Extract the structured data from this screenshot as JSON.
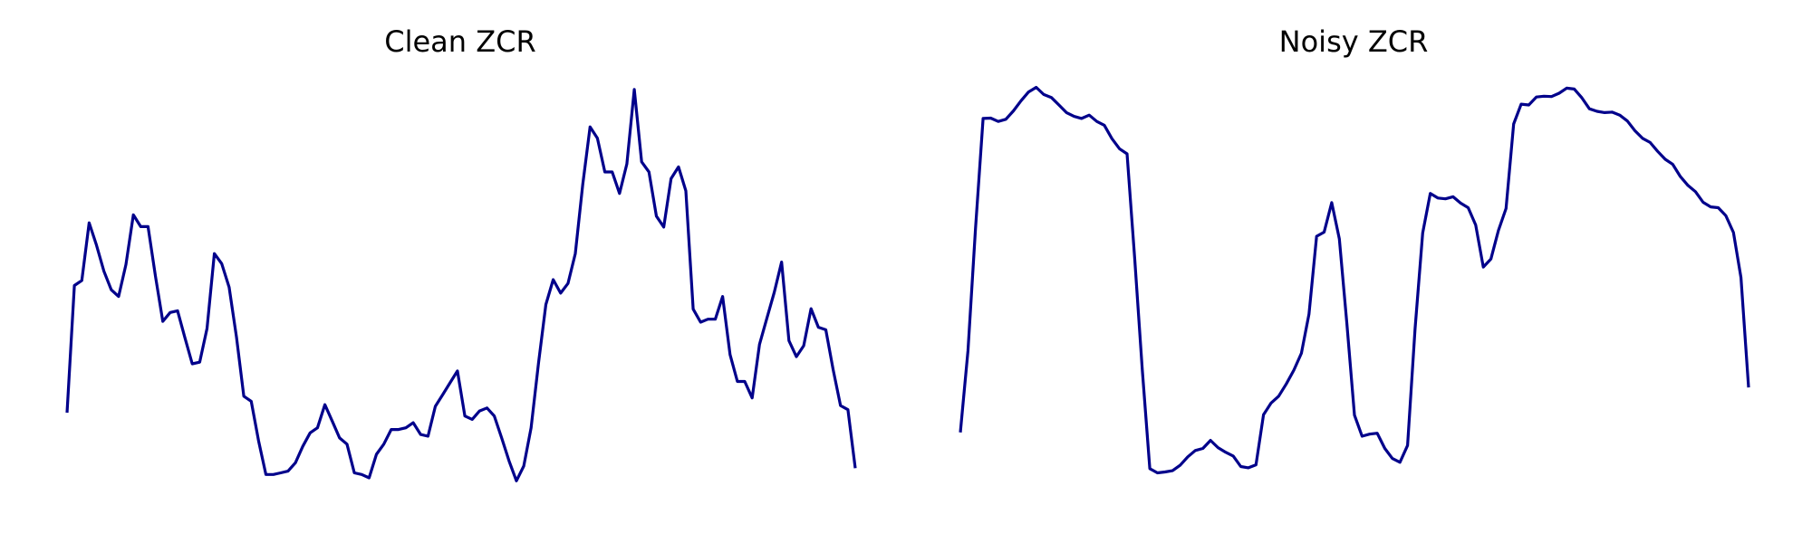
{
  "chart_data": [
    {
      "type": "line",
      "title": "Clean ZCR",
      "xlabel": "",
      "ylabel": "",
      "axes_visible": false,
      "grid": false,
      "color": "#00008b",
      "ylim": [
        0.0,
        1.0
      ],
      "values": [
        0.213,
        0.515,
        0.527,
        0.664,
        0.611,
        0.549,
        0.505,
        0.489,
        0.565,
        0.683,
        0.655,
        0.655,
        0.537,
        0.43,
        0.451,
        0.455,
        0.391,
        0.329,
        0.333,
        0.413,
        0.591,
        0.567,
        0.511,
        0.393,
        0.252,
        0.24,
        0.146,
        0.066,
        0.066,
        0.07,
        0.074,
        0.094,
        0.133,
        0.165,
        0.177,
        0.232,
        0.193,
        0.153,
        0.138,
        0.07,
        0.066,
        0.058,
        0.114,
        0.138,
        0.173,
        0.173,
        0.177,
        0.189,
        0.161,
        0.157,
        0.228,
        0.256,
        0.284,
        0.312,
        0.205,
        0.197,
        0.217,
        0.224,
        0.205,
        0.153,
        0.098,
        0.051,
        0.086,
        0.177,
        0.331,
        0.47,
        0.529,
        0.497,
        0.52,
        0.591,
        0.755,
        0.892,
        0.865,
        0.785,
        0.785,
        0.734,
        0.804,
        0.981,
        0.809,
        0.785,
        0.68,
        0.654,
        0.769,
        0.797,
        0.74,
        0.459,
        0.428,
        0.435,
        0.435,
        0.489,
        0.351,
        0.287,
        0.287,
        0.248,
        0.375,
        0.437,
        0.499,
        0.571,
        0.384,
        0.346,
        0.372,
        0.46,
        0.416,
        0.41,
        0.315,
        0.23,
        0.22,
        0.081
      ]
    },
    {
      "type": "line",
      "title": "Noisy ZCR",
      "xlabel": "",
      "ylabel": "",
      "axes_visible": false,
      "grid": false,
      "color": "#00008b",
      "ylim": [
        0.0,
        1.0
      ],
      "values": [
        0.166,
        0.36,
        0.65,
        0.912,
        0.913,
        0.905,
        0.91,
        0.93,
        0.954,
        0.975,
        0.986,
        0.969,
        0.962,
        0.944,
        0.926,
        0.917,
        0.912,
        0.92,
        0.905,
        0.896,
        0.864,
        0.84,
        0.828,
        0.58,
        0.315,
        0.08,
        0.07,
        0.072,
        0.075,
        0.088,
        0.108,
        0.123,
        0.128,
        0.147,
        0.13,
        0.119,
        0.11,
        0.085,
        0.082,
        0.089,
        0.208,
        0.236,
        0.252,
        0.281,
        0.314,
        0.354,
        0.447,
        0.632,
        0.642,
        0.712,
        0.626,
        0.425,
        0.207,
        0.157,
        0.162,
        0.164,
        0.128,
        0.104,
        0.095,
        0.135,
        0.413,
        0.64,
        0.734,
        0.723,
        0.721,
        0.726,
        0.711,
        0.7,
        0.659,
        0.559,
        0.578,
        0.646,
        0.698,
        0.899,
        0.946,
        0.944,
        0.963,
        0.965,
        0.964,
        0.972,
        0.984,
        0.982,
        0.961,
        0.935,
        0.929,
        0.926,
        0.927,
        0.92,
        0.906,
        0.883,
        0.865,
        0.855,
        0.834,
        0.815,
        0.803,
        0.774,
        0.753,
        0.738,
        0.713,
        0.702,
        0.7,
        0.681,
        0.641,
        0.534,
        0.273
      ]
    }
  ]
}
